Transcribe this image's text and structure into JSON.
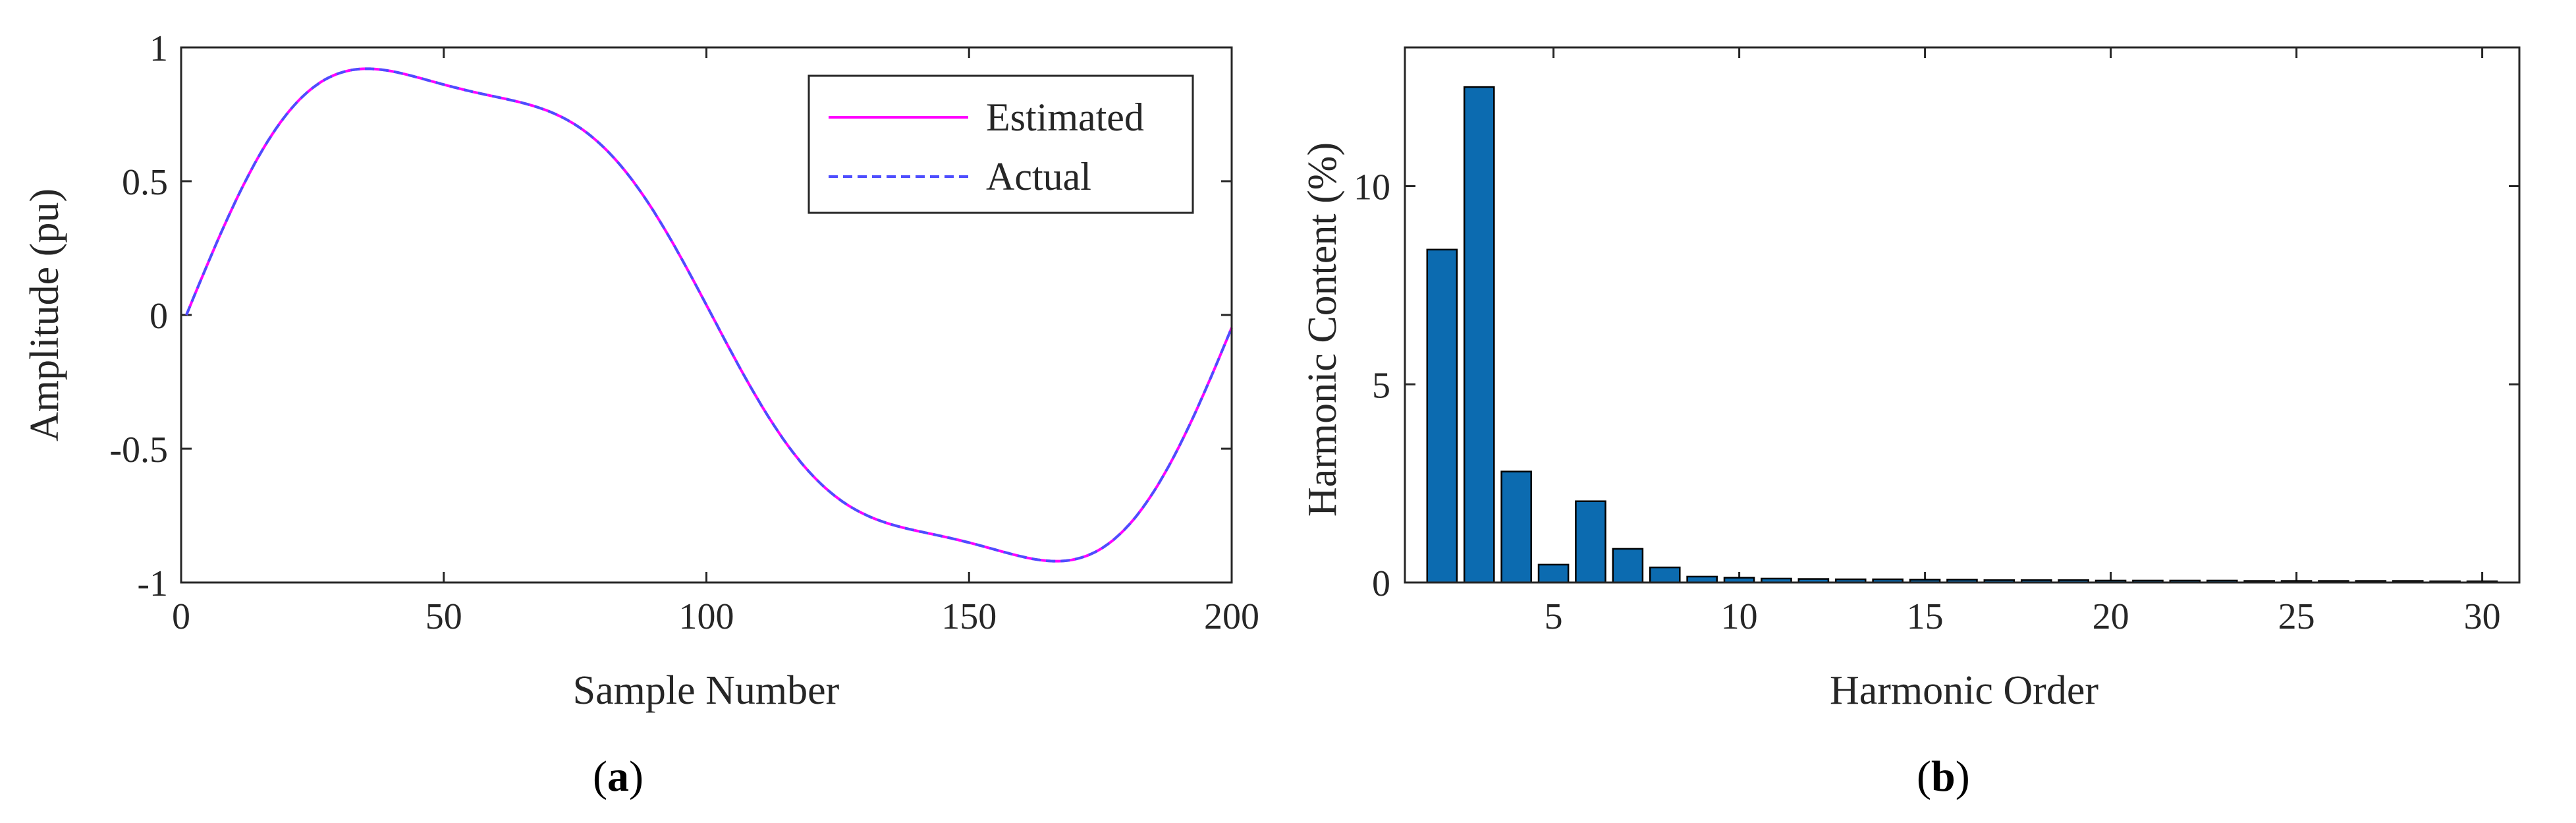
{
  "chart_data": [
    {
      "id": "a",
      "type": "line",
      "caption": {
        "open": "(",
        "letter": "a",
        "close": ")"
      },
      "xlabel": "Sample Number",
      "ylabel": "Amplitude (pu)",
      "xlim": [
        0,
        200
      ],
      "ylim": [
        -1,
        1
      ],
      "xticks": [
        0,
        50,
        100,
        150,
        200
      ],
      "yticks": [
        -1,
        -0.5,
        0,
        0.5,
        1
      ],
      "xtick_labels": [
        "0",
        "50",
        "100",
        "150",
        "200"
      ],
      "ytick_labels": [
        "-1",
        "-0.5",
        "0",
        "0.5",
        "1"
      ],
      "legend_position": "top-right",
      "series": [
        {
          "name": "Estimated",
          "color": "#ff00ff",
          "style": "solid",
          "formula": "0.98*sin(2*pi*(n-1)/200) + 0.082*sin(4*pi*(n-1)/200) + 0.124*sin(6*pi*(n-1)/200)"
        },
        {
          "name": "Actual",
          "color": "#4d4dff",
          "style": "dashed",
          "formula": "0.98*sin(2*pi*(n-1)/200) + 0.082*sin(4*pi*(n-1)/200) + 0.124*sin(6*pi*(n-1)/200)"
        }
      ],
      "wave": {
        "n_start": 1,
        "n_end": 200,
        "period": 200,
        "harmonics": [
          {
            "order": 1,
            "amplitude": 0.98
          },
          {
            "order": 2,
            "amplitude": 0.082
          },
          {
            "order": 3,
            "amplitude": 0.124
          }
        ]
      }
    },
    {
      "id": "b",
      "type": "bar",
      "caption": {
        "open": "(",
        "letter": "b",
        "close": ")"
      },
      "xlabel": "Harmonic Order",
      "ylabel": "Harmonic Content (%)",
      "xlim": [
        1,
        31
      ],
      "ylim": [
        0,
        13.5
      ],
      "xticks": [
        5,
        10,
        15,
        20,
        25,
        30
      ],
      "yticks": [
        0,
        5,
        10
      ],
      "xtick_labels": [
        "5",
        "10",
        "15",
        "20",
        "25",
        "30"
      ],
      "ytick_labels": [
        "0",
        "5",
        "10"
      ],
      "bar_color": "#0c6bb0",
      "categories": [
        2,
        3,
        4,
        5,
        6,
        7,
        8,
        9,
        10,
        11,
        12,
        13,
        14,
        15,
        16,
        17,
        18,
        19,
        20,
        21,
        22,
        23,
        24,
        25,
        26,
        27,
        28,
        29,
        30
      ],
      "values": [
        8.4,
        12.5,
        2.8,
        0.45,
        2.05,
        0.85,
        0.38,
        0.15,
        0.12,
        0.1,
        0.09,
        0.08,
        0.08,
        0.07,
        0.07,
        0.06,
        0.06,
        0.06,
        0.05,
        0.05,
        0.05,
        0.05,
        0.04,
        0.04,
        0.04,
        0.04,
        0.04,
        0.03,
        0.03
      ]
    }
  ]
}
